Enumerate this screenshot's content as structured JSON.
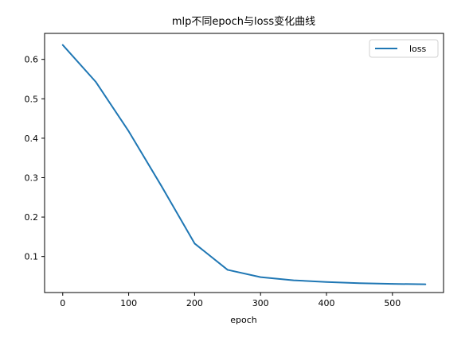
{
  "chart_data": {
    "type": "line",
    "title": "mlp不同epoch与loss变化曲线",
    "xlabel": "epoch",
    "ylabel": "",
    "xlim": [
      -27.5,
      577.5
    ],
    "ylim": [
      0.0086,
      0.6659
    ],
    "xticks": [
      0,
      100,
      200,
      300,
      400,
      500
    ],
    "yticks": [
      0.1,
      0.2,
      0.3,
      0.4,
      0.5,
      0.6
    ],
    "x": [
      0,
      50,
      100,
      150,
      200,
      250,
      300,
      350,
      400,
      450,
      500,
      550
    ],
    "series": [
      {
        "name": "loss",
        "color": "#1f77b4",
        "values": [
          0.6365,
          0.5432,
          0.4177,
          0.2779,
          0.133,
          0.0662,
          0.0476,
          0.0396,
          0.0354,
          0.0323,
          0.0306,
          0.0294
        ]
      }
    ],
    "legend_position": "top-right",
    "grid": false
  }
}
